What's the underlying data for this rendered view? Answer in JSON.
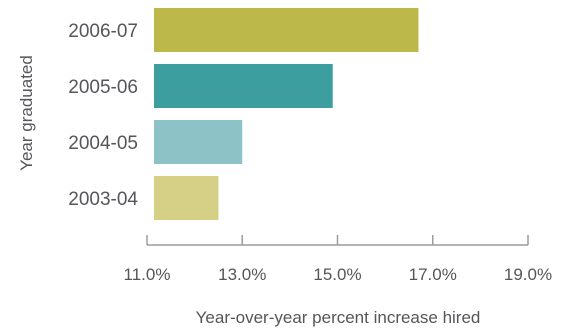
{
  "chart_data": {
    "type": "bar",
    "orientation": "horizontal",
    "categories": [
      "2006-07",
      "2005-06",
      "2004-05",
      "2003-04"
    ],
    "values": [
      16.7,
      14.9,
      13.0,
      12.5
    ],
    "colors": [
      "#bdb84a",
      "#3d9ea0",
      "#8dc3c6",
      "#d6cf86"
    ],
    "xlabel": "Year-over-year percent increase hired",
    "ylabel": "Year graduated",
    "xlim": [
      11.0,
      19.0
    ],
    "xticks": [
      11.0,
      13.0,
      15.0,
      17.0,
      19.0
    ],
    "xtick_labels": [
      "11.0%",
      "13.0%",
      "15.0%",
      "17.0%",
      "19.0%"
    ],
    "grid": false,
    "legend": "none"
  }
}
